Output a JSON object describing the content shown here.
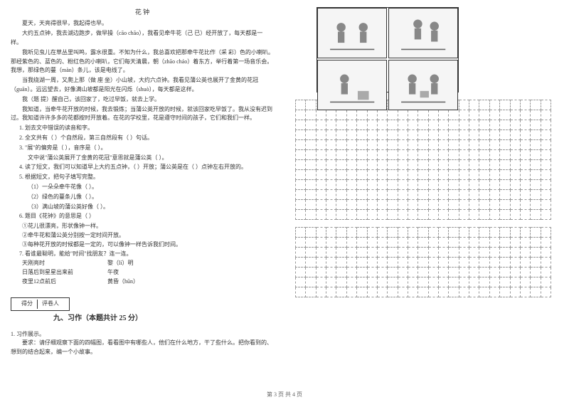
{
  "article": {
    "title": "花 钟",
    "paragraphs": [
      "夏天，天亮得很早，我起得也早。",
      "大约五点钟，我去湖边跑步，做早操（cāo chāo），我看见牵牛花（己 已）经开放了，每天都是一样。",
      "我听见虫儿在草丛里叫鸣，露水很重。不知为什么，我总喜欢把那牵牛花比作（采 彩）色的小喇叭。那经紫色的、蓝色的、粉红色的小喇叭，它们每天清晨，朝（zhāo cháo）着东方，举行着第一场音乐会。我想，那绿色的蔓（màn）条儿，该是电线了。",
      "当我绕湖一周，又爬上那（做 座 坐）小山坡，大约六点钟。我看见蒲公英也展开了金黄的花冠（guān）。远远望去，好像满山坡都是阳光在闪烁（shuò），每天都是这样。",
      "我（题 提）醒自己，该回家了，吃过早饭，就去上学。",
      "我知道，当牵牛花开放的时候，我去锻炼；当蒲公英开放的时候，就该回家吃早饭了。我从没有迟到过。我知道许许多多的花都按时开放着。在花的学校里，花是遵守时间的孩子，它们和我们一样。"
    ]
  },
  "questions": {
    "q1": "1. 划去文中错误的读音和字。",
    "q2": "2. 全文共有（    ）个自然段，第三自然段有（    ）句话。",
    "q3a": "3. \"展\"的偏旁是（    ），音序是（    ）。",
    "q3b": "文中说\"蒲公英展开了金黄的花冠\"意思就是蒲公英（        ）。",
    "q4a": "4. 读了短文，我们可以知道早上大约五点钟，（        ）开放；蒲公英是在（    ）点钟左右开放的。",
    "q5": "5. 根据短文，把句子填写完整。",
    "q5_1": "（1）一朵朵牵牛花像（            ）。",
    "q5_2": "（2）绿色的蔓条儿像（            ）。",
    "q5_3": "（3）满山坡的蒲公英好像（            ）。",
    "q6": "6. 题目《花钟》的意思是（    ）",
    "q6_a": "①花儿很漂亮，形状像钟一样。",
    "q6_b": "②牵牛花和蒲公英分别按一定时间开放。",
    "q6_c": "③每种花开放的时候都是一定的，可以像钟一样告诉我们时间。",
    "q7": "7. 看谁最聪明，能给\"时间\"找朋友？连一连。",
    "match": [
      {
        "left": "天刚亮时",
        "right": "黎（lí）明"
      },
      {
        "left": "日落后到星星出来前",
        "right": "午夜"
      },
      {
        "left": "夜里12点前后",
        "right": "黄昏（hūn）"
      }
    ]
  },
  "section9": {
    "score_labels": [
      "得分",
      "评卷人"
    ],
    "title": "九、习作（本题共计 25 分）",
    "task_num": "1. 习作展示。",
    "task_desc": "要求：请仔细观察下面的四幅图，看看图中有哪些人，他们在什么地方，干了些什么。把你看到的、想到的结合起来，编一个小故事。"
  },
  "footer": "第 3 页 共 4 页",
  "grids": {
    "grid1_rows": 12,
    "grid1_cols": 25,
    "grid2_rows": 7,
    "grid2_cols": 25
  },
  "styling": {
    "bg_color": "#ffffff",
    "text_color": "#333333",
    "grid_border": "#999999",
    "font_size_body": 8,
    "font_size_title": 10
  }
}
